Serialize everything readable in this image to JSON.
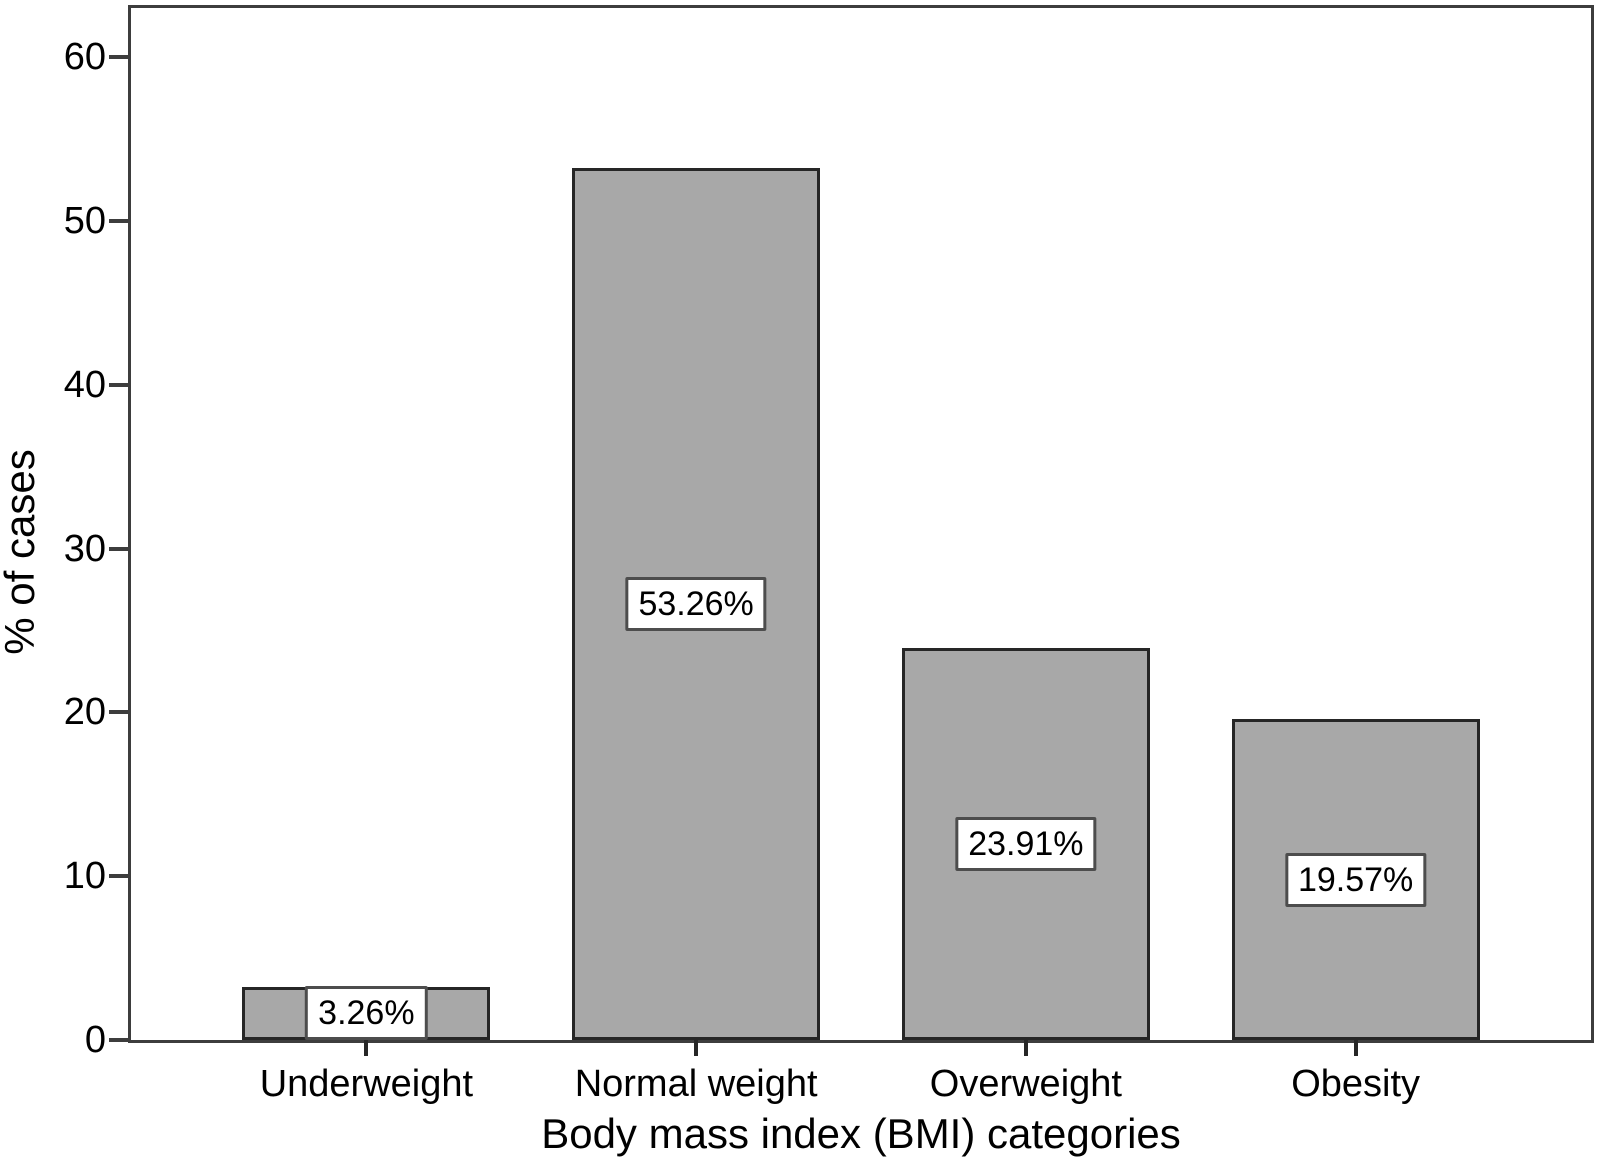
{
  "chart_data": {
    "type": "bar",
    "categories": [
      "Underweight",
      "Normal weight",
      "Overweight",
      "Obesity"
    ],
    "values": [
      3.26,
      53.26,
      23.91,
      19.57
    ],
    "value_labels": [
      "3.26%",
      "53.26%",
      "23.91%",
      "19.57%"
    ],
    "xlabel": "Body mass index (BMI) categories",
    "ylabel": "% of cases",
    "yticks": [
      0,
      10,
      20,
      30,
      40,
      50,
      60
    ],
    "ylim": [
      0,
      63
    ],
    "grid": false,
    "legend": false,
    "bar_color": "#a8a8a8",
    "bar_border_color": "#262626",
    "axis_color": "#3d3d3d",
    "value_label_box_bg": "#ffffff",
    "value_label_box_border": "#4d4d4d"
  }
}
